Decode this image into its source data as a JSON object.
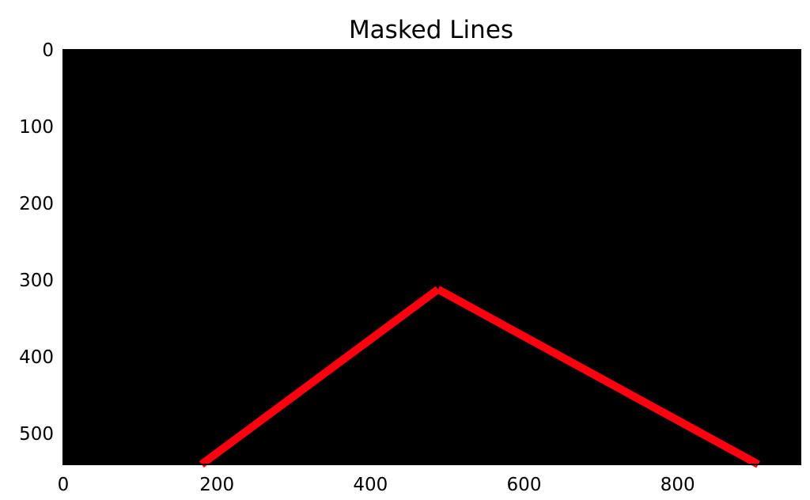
{
  "chart_data": {
    "type": "line",
    "title": "Masked Lines",
    "xlabel": "",
    "ylabel": "",
    "xlim": [
      0,
      960
    ],
    "ylim": [
      540,
      0
    ],
    "y_inverted": true,
    "grid": false,
    "background": "#000000",
    "x_ticks": [
      0,
      200,
      400,
      600,
      800
    ],
    "y_ticks": [
      0,
      100,
      200,
      300,
      400,
      500
    ],
    "series": [
      {
        "color": "#ff0010",
        "points": [
          [
            180,
            540
          ],
          [
            488,
            312
          ]
        ]
      },
      {
        "color": "#ff0010",
        "points": [
          [
            488,
            312
          ],
          [
            905,
            540
          ]
        ]
      }
    ]
  }
}
